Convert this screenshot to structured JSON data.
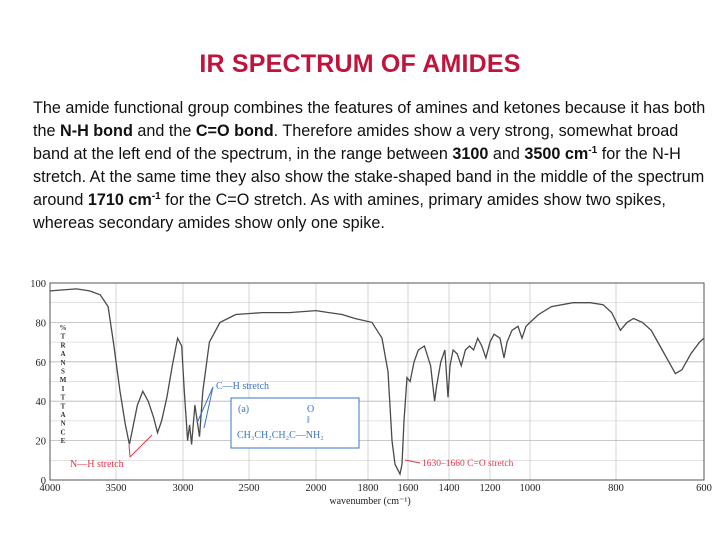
{
  "slide": {
    "title": "IR SPECTRUM OF AMIDES",
    "paragraph": {
      "t1": "The amide functional group combines the features of amines and ketones because it has both the ",
      "b1": "N-H bond",
      "t2": " and the ",
      "b2": "C=O bond",
      "t3": ". Therefore amides show a very strong, somewhat broad band at the left end of the spectrum, in the range between ",
      "b3": "3100",
      "t4": " and ",
      "b4": "3500 cm",
      "sup1": "-1",
      "t5": " for the N-H stretch. At the same time they also show the stake-shaped band in the middle of the spectrum around ",
      "b5": "1710 cm",
      "sup2": "-1",
      "t6": " for the C=O stretch. As with amines, primary amides show two spikes, whereas secondary amides show only one spike."
    }
  },
  "chart_data": {
    "type": "line",
    "xlabel": "wavenumber (cm⁻¹)",
    "ylabel": "% TRANSMITTANCE",
    "xlim": [
      4000,
      600
    ],
    "ylim": [
      0,
      100
    ],
    "x_ticks": [
      4000,
      3500,
      3000,
      2500,
      2000,
      1800,
      1600,
      1400,
      1200,
      1000,
      800,
      600
    ],
    "y_ticks": [
      0,
      20,
      40,
      60,
      80,
      100
    ],
    "grid": true,
    "series": [
      {
        "points": [
          [
            4000,
            96
          ],
          [
            3800,
            97
          ],
          [
            3700,
            96
          ],
          [
            3620,
            94
          ],
          [
            3560,
            88
          ],
          [
            3520,
            70
          ],
          [
            3470,
            45
          ],
          [
            3430,
            28
          ],
          [
            3400,
            18
          ],
          [
            3370,
            28
          ],
          [
            3340,
            38
          ],
          [
            3300,
            45
          ],
          [
            3260,
            40
          ],
          [
            3220,
            32
          ],
          [
            3190,
            24
          ],
          [
            3160,
            30
          ],
          [
            3120,
            42
          ],
          [
            3080,
            58
          ],
          [
            3040,
            72
          ],
          [
            3010,
            68
          ],
          [
            2990,
            45
          ],
          [
            2965,
            20
          ],
          [
            2950,
            28
          ],
          [
            2935,
            18
          ],
          [
            2910,
            38
          ],
          [
            2875,
            22
          ],
          [
            2850,
            45
          ],
          [
            2800,
            70
          ],
          [
            2720,
            80
          ],
          [
            2600,
            84
          ],
          [
            2400,
            85
          ],
          [
            2200,
            85
          ],
          [
            2000,
            86
          ],
          [
            1950,
            85
          ],
          [
            1900,
            84
          ],
          [
            1850,
            82
          ],
          [
            1780,
            80
          ],
          [
            1730,
            72
          ],
          [
            1700,
            55
          ],
          [
            1680,
            20
          ],
          [
            1665,
            8
          ],
          [
            1650,
            5
          ],
          [
            1640,
            3
          ],
          [
            1630,
            8
          ],
          [
            1620,
            30
          ],
          [
            1605,
            52
          ],
          [
            1590,
            50
          ],
          [
            1570,
            60
          ],
          [
            1550,
            66
          ],
          [
            1520,
            68
          ],
          [
            1490,
            58
          ],
          [
            1470,
            40
          ],
          [
            1460,
            48
          ],
          [
            1440,
            60
          ],
          [
            1420,
            66
          ],
          [
            1405,
            42
          ],
          [
            1395,
            58
          ],
          [
            1380,
            66
          ],
          [
            1360,
            64
          ],
          [
            1340,
            58
          ],
          [
            1320,
            66
          ],
          [
            1300,
            68
          ],
          [
            1280,
            66
          ],
          [
            1260,
            72
          ],
          [
            1240,
            68
          ],
          [
            1220,
            62
          ],
          [
            1200,
            70
          ],
          [
            1180,
            74
          ],
          [
            1150,
            72
          ],
          [
            1130,
            62
          ],
          [
            1115,
            70
          ],
          [
            1090,
            76
          ],
          [
            1060,
            78
          ],
          [
            1040,
            72
          ],
          [
            1020,
            78
          ],
          [
            1000,
            80
          ],
          [
            980,
            84
          ],
          [
            950,
            88
          ],
          [
            900,
            90
          ],
          [
            860,
            90
          ],
          [
            830,
            89
          ],
          [
            810,
            85
          ],
          [
            790,
            76
          ],
          [
            775,
            80
          ],
          [
            760,
            82
          ],
          [
            740,
            80
          ],
          [
            720,
            76
          ],
          [
            700,
            68
          ],
          [
            680,
            60
          ],
          [
            665,
            54
          ],
          [
            650,
            56
          ],
          [
            630,
            64
          ],
          [
            610,
            70
          ],
          [
            600,
            72
          ]
        ]
      }
    ],
    "annotations": {
      "nh": "N—H stretch",
      "ch": "C—H stretch",
      "co": "1630–1660 C=O stretch",
      "inset_label": "(a)",
      "inset_formula": "CH₃CH₂CH₂C—NH₂",
      "inset_o": "O",
      "inset_bond": "‖"
    },
    "colors": {
      "line": "#4a4a4a",
      "grid": "#b8b8b8",
      "annotation": "#e8344a",
      "inset_box": "#3b74c4"
    }
  }
}
